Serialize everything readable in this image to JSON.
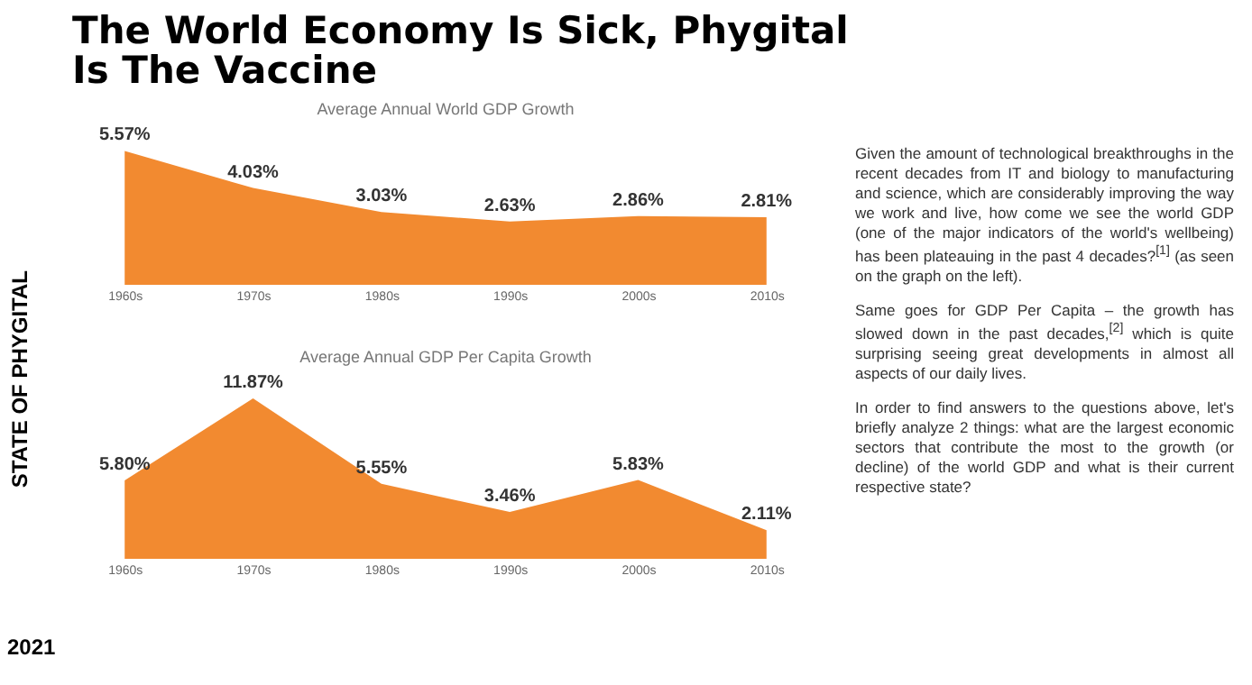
{
  "chart_data": [
    {
      "type": "area",
      "title": "The World Economy Is Sick, Phygital Is The Vaccine",
      "subtitle": "Average Annual World GDP Growth",
      "categories": [
        "1960s",
        "1970s",
        "1980s",
        "1990s",
        "2000s",
        "2010s"
      ],
      "series": [
        {
          "color": "#f28a30",
          "values": [
            5.57,
            4.03,
            3.03,
            2.63,
            2.86,
            2.81
          ],
          "value_labels": [
            "5.57%",
            "4.03%",
            "3.03%",
            "2.63%",
            "2.86%",
            "2.81%"
          ]
        }
      ],
      "tick_labels": "x",
      "annotations": [
        "STATE OF PHYGITAL",
        "2021",
        "Given the amount of technological breakthroughs in the recent decades from IT and biology to manufacturing and science, which are considerably improving the way we work and live, how come we see the world GDP (one of the major indicators of the world's wellbeing) has been plateauing in the past 4 decades?$^{[1]}$ (as seen on the graph on the left).",
        "Same goes for GDP Per Capita – the growth has slowed down in the past decades,$^{[2]}$ which is quite surprising seeing great developments in almost all aspects of our daily lives.",
        "In order to find answers to the questions above, let's briefly analyze 2 things: what are the largest economic sectors that contribute the most to the growth (or decline) of the world GDP and what is their current respective state?"
      ]
    },
    {
      "type": "area",
      "title": "Average Annual GDP Per Capita Growth",
      "categories": [
        "1960s",
        "1970s",
        "1980s",
        "1990s",
        "2000s",
        "2010s"
      ],
      "series": [
        {
          "color": "#f28a30",
          "values": [
            5.8,
            11.87,
            5.55,
            3.46,
            5.83,
            2.11
          ],
          "value_labels": [
            "5.80%",
            "11.87%",
            "5.55%",
            "3.46%",
            "5.83%",
            "2.11%"
          ]
        }
      ],
      "tick_labels": "x"
    }
  ]
}
